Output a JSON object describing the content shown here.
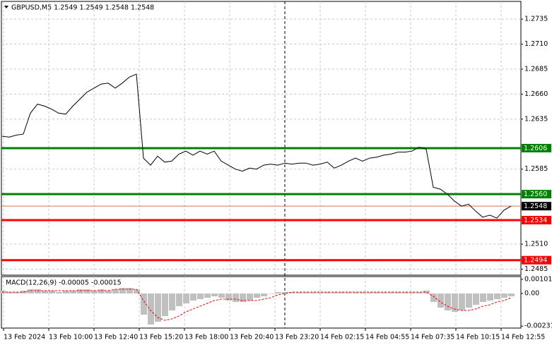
{
  "chart_data": [
    {
      "type": "line",
      "title": "GBPUSD,M5  1.2549 1.2549 1.2548 1.2548",
      "color": "#000000",
      "grid": true,
      "ylim": [
        1.2479,
        1.2752
      ],
      "yticks": [
        1.2735,
        {
          "value": 1.271,
          "label": "1.2710"
        },
        1.2685,
        {
          "value": 1.266,
          "label": "1.2660"
        },
        1.2635,
        1.2585,
        {
          "value": 1.251,
          "label": "1.2510"
        },
        1.2485
      ],
      "x_tick_labels": [
        "13 Feb 2024",
        "13 Feb 10:00",
        "13 Feb 12:40",
        "13 Feb 15:20",
        "13 Feb 18:00",
        "13 Feb 20:40",
        "13 Feb 23:20",
        "14 Feb 02:15",
        "14 Feb 04:55",
        "14 Feb 07:35",
        "14 Feb 10:15",
        "14 Feb 12:55"
      ],
      "values": [
        1.2618,
        1.2617,
        1.2619,
        1.262,
        1.2641,
        1.265,
        1.2648,
        1.2645,
        1.2641,
        1.264,
        1.2648,
        1.2655,
        1.2662,
        1.2666,
        1.267,
        1.2671,
        1.2666,
        1.2671,
        1.2677,
        1.268,
        1.2596,
        1.2589,
        1.2598,
        1.2592,
        1.2593,
        1.26,
        1.2603,
        1.2599,
        1.2603,
        1.26,
        1.2603,
        1.2593,
        1.2589,
        1.2585,
        1.2583,
        1.2586,
        1.2585,
        1.2589,
        1.259,
        1.2589,
        1.2591,
        1.259,
        1.2591,
        1.2591,
        1.2589,
        1.259,
        1.2592,
        1.2586,
        1.2589,
        1.2593,
        1.2596,
        1.2593,
        1.2596,
        1.2597,
        1.2599,
        1.26,
        1.2602,
        1.2602,
        1.2603,
        1.2607,
        1.2605,
        1.2567,
        1.2565,
        1.256,
        1.2553,
        1.2548,
        1.255,
        1.2543,
        1.2537,
        1.2539,
        1.2536,
        1.2544,
        1.2548
      ],
      "levels": [
        {
          "value": 1.2606,
          "color": "#008000"
        },
        {
          "value": 1.256,
          "label": "1.2560",
          "color": "#008000"
        },
        {
          "value": 1.2534,
          "color": "#ff0000"
        },
        {
          "value": 1.2494,
          "color": "#ff0000"
        }
      ],
      "last_price": {
        "value": 1.2548,
        "color": "#e07040"
      }
    },
    {
      "type": "macd",
      "title": "MACD(12,26,9) -0.00005 -0.00015",
      "ylim": [
        -0.0024,
        0.0012
      ],
      "yticks": [
        0.00101,
        {
          "value": 0,
          "label": "0.00"
        },
        -0.00231
      ],
      "histogram": {
        "color": "#c0c0c0",
        "values": [
          0.0002,
          0.0001,
          0.0001,
          0.0002,
          0.0003,
          0.0003,
          0.0002,
          0.0002,
          0.0001,
          0.0002,
          0.0002,
          0.0003,
          0.0003,
          0.0002,
          0.0003,
          0.0002,
          0.0003,
          0.0004,
          0.0004,
          0.0003,
          -0.0015,
          -0.0022,
          -0.002,
          -0.0016,
          -0.0012,
          -0.0009,
          -0.0007,
          -0.0005,
          -0.0004,
          -0.0003,
          -0.0002,
          -0.0003,
          -0.0005,
          -0.0006,
          -0.0006,
          -0.0005,
          -0.0003,
          -0.0002,
          0,
          0.0001,
          0.0001,
          0.0001,
          0.0001,
          0.0001,
          0.0001,
          0.0001,
          0.0001,
          0.0001,
          0.0001,
          0.0001,
          0.0001,
          0.0001,
          0.0001,
          0.0001,
          0.0001,
          0.0001,
          0.0001,
          0.0001,
          0.0001,
          0.0001,
          0.0002,
          -0.0006,
          -0.001,
          -0.0012,
          -0.0013,
          -0.0012,
          -0.001,
          -0.0008,
          -0.0006,
          -0.0005,
          -0.0004,
          -0.0003,
          -0.0002
        ]
      },
      "signal": {
        "color": "#ff0000",
        "values": [
          0.0001,
          0.0001,
          0.0001,
          0.0001,
          0.0002,
          0.0002,
          0.0002,
          0.0002,
          0.0002,
          0.0002,
          0.0002,
          0.0002,
          0.0002,
          0.0002,
          0.0002,
          0.0002,
          0.0003,
          0.0003,
          0.0003,
          0.0003,
          -0.0005,
          -0.0012,
          -0.0017,
          -0.0019,
          -0.0018,
          -0.0016,
          -0.0013,
          -0.0011,
          -0.0009,
          -0.0007,
          -0.0005,
          -0.0004,
          -0.0004,
          -0.0004,
          -0.0005,
          -0.0005,
          -0.0005,
          -0.0004,
          -0.0003,
          -0.0001,
          0,
          0.0001,
          0.0001,
          0.0001,
          0.0001,
          0.0001,
          0.0001,
          0.0001,
          0.0001,
          0.0001,
          0.0001,
          0.0001,
          0.0001,
          0.0001,
          0.0001,
          0.0001,
          0.0001,
          0.0001,
          0.0001,
          0.0001,
          0.0001,
          -0.0002,
          -0.0006,
          -0.0009,
          -0.0011,
          -0.0012,
          -0.0012,
          -0.0011,
          -0.0009,
          -0.0008,
          -0.0006,
          -0.0005,
          -0.0003
        ]
      }
    }
  ]
}
